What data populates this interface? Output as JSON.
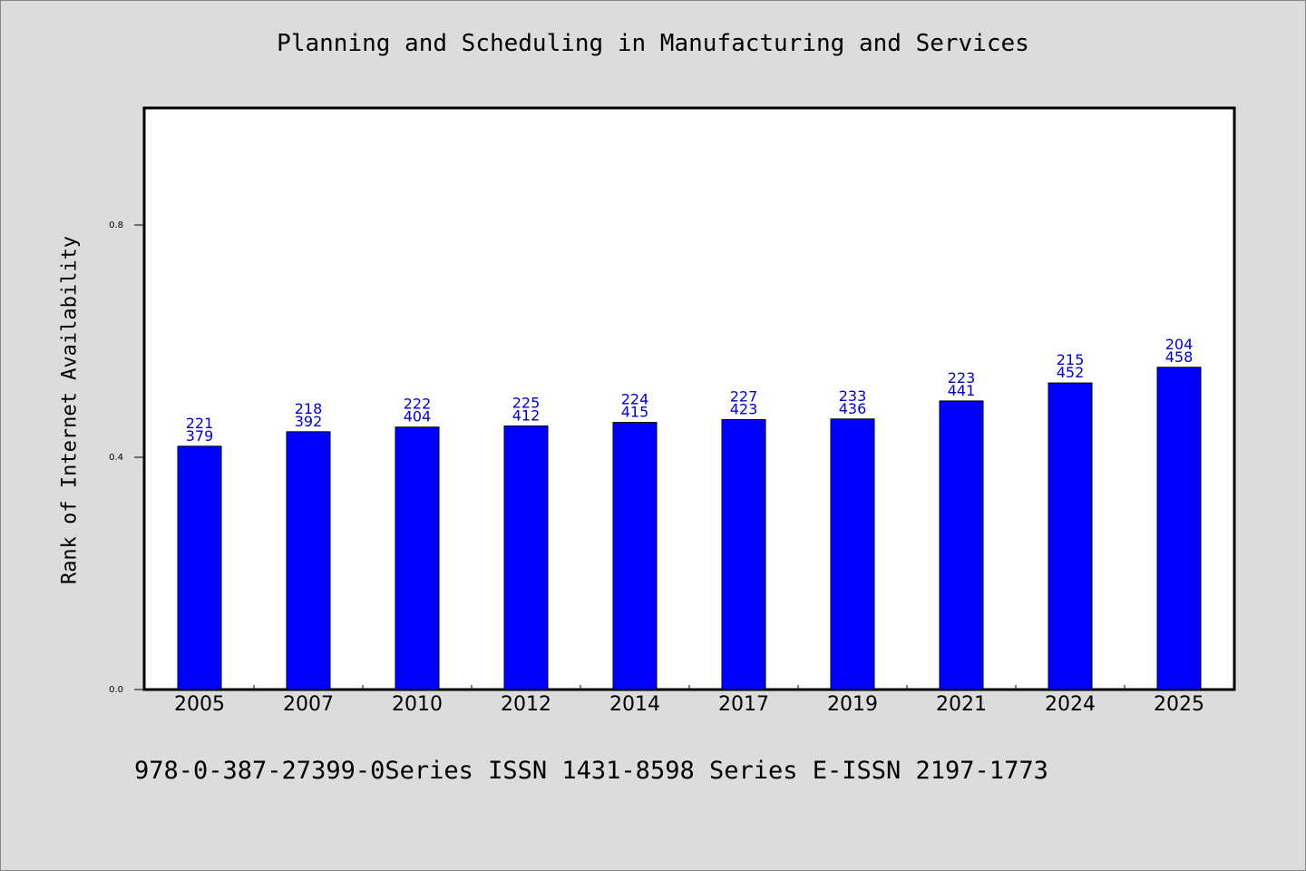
{
  "chart_data": {
    "type": "bar",
    "title": "Planning and Scheduling in Manufacturing and Services",
    "ylabel": "Rank of Internet Availability",
    "xlabel": "",
    "categories": [
      "2005",
      "2007",
      "2010",
      "2012",
      "2014",
      "2017",
      "2019",
      "2021",
      "2024",
      "2025"
    ],
    "values": [
      0.419,
      0.444,
      0.452,
      0.454,
      0.46,
      0.465,
      0.466,
      0.497,
      0.528,
      0.555
    ],
    "label_top": [
      "221",
      "218",
      "222",
      "225",
      "224",
      "227",
      "233",
      "223",
      "215",
      "204"
    ],
    "label_bottom": [
      "379",
      "392",
      "404",
      "412",
      "415",
      "423",
      "436",
      "441",
      "452",
      "458"
    ],
    "yticks": [
      "0.0",
      "0.4",
      "0.8"
    ],
    "ylim": [
      0,
      1.0
    ],
    "grid": false,
    "bar_color": "#0000ff",
    "label_color": "#0000cc"
  },
  "footer": "978-0-387-27399-0Series ISSN 1431-8598 Series E-ISSN 2197-1773"
}
